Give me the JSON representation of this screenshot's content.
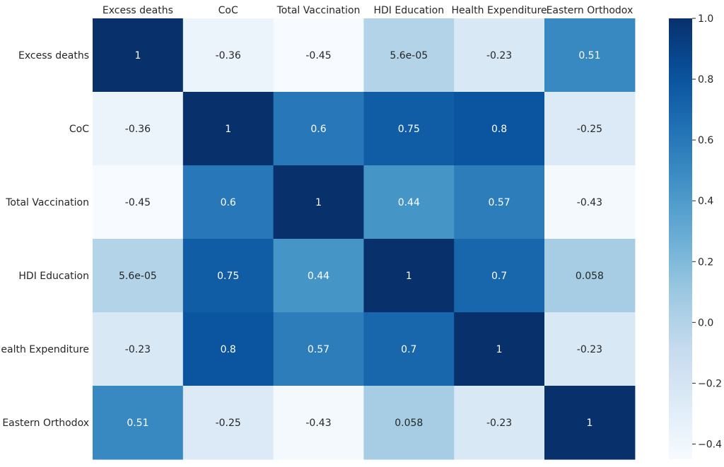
{
  "chart_data": {
    "type": "heatmap",
    "title": "",
    "xlabel": "",
    "ylabel": "",
    "x_labels": [
      "Excess deaths",
      "CoC",
      "Total Vaccination",
      "HDI Education",
      "Health Expenditure",
      "Eastern Orthodox"
    ],
    "y_labels": [
      "Excess deaths",
      "CoC",
      "Total Vaccination",
      "HDI Education",
      "Health Expenditure",
      "Eastern Orthodox"
    ],
    "values": [
      [
        1,
        -0.36,
        -0.45,
        5.6e-05,
        -0.23,
        0.51
      ],
      [
        -0.36,
        1,
        0.6,
        0.75,
        0.8,
        -0.25
      ],
      [
        -0.45,
        0.6,
        1,
        0.44,
        0.57,
        -0.43
      ],
      [
        5.6e-05,
        0.75,
        0.44,
        1,
        0.7,
        0.058
      ],
      [
        -0.23,
        0.8,
        0.57,
        0.7,
        1,
        -0.23
      ],
      [
        0.51,
        -0.25,
        -0.43,
        0.058,
        -0.23,
        1
      ]
    ],
    "annotations": [
      [
        "1",
        "-0.36",
        "-0.45",
        "5.6e-05",
        "-0.23",
        "0.51"
      ],
      [
        "-0.36",
        "1",
        "0.6",
        "0.75",
        "0.8",
        "-0.25"
      ],
      [
        "-0.45",
        "0.6",
        "1",
        "0.44",
        "0.57",
        "-0.43"
      ],
      [
        "5.6e-05",
        "0.75",
        "0.44",
        "1",
        "0.7",
        "0.058"
      ],
      [
        "-0.23",
        "0.8",
        "0.57",
        "0.7",
        "1",
        "-0.23"
      ],
      [
        "0.51",
        "-0.25",
        "-0.43",
        "0.058",
        "-0.23",
        "1"
      ]
    ],
    "vmin": -0.45,
    "vmax": 1,
    "colormap": "Blues",
    "colorbar": {
      "ticks": [
        1.0,
        0.8,
        0.6,
        0.4,
        0.2,
        0.0,
        -0.2,
        -0.4
      ],
      "tick_labels": [
        "1.0",
        "0.8",
        "0.6",
        "0.4",
        "0.2",
        "0.0",
        "−0.2",
        "−0.4"
      ]
    }
  }
}
